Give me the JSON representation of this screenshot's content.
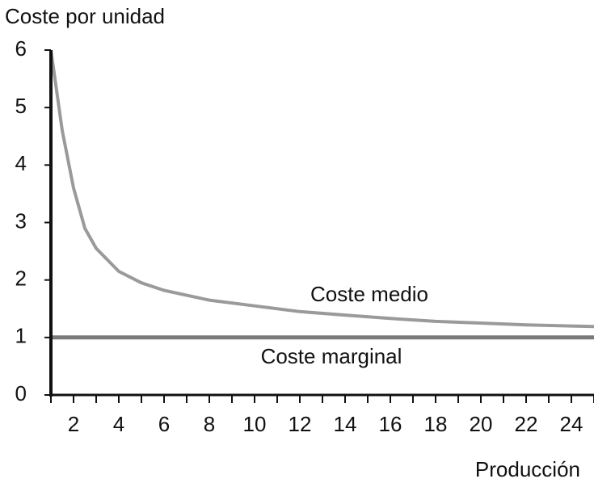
{
  "chart_data": {
    "type": "line",
    "title": "Coste por unidad",
    "x_label": "Producción",
    "xlim": [
      1,
      25
    ],
    "ylim": [
      0,
      6
    ],
    "xticks": [
      2,
      4,
      6,
      8,
      10,
      12,
      14,
      16,
      18,
      20,
      22,
      24
    ],
    "xminorticks": [
      1,
      3,
      5,
      7,
      9,
      11,
      13,
      15,
      17,
      19,
      21,
      23,
      25
    ],
    "yticks": [
      0,
      1,
      2,
      3,
      4,
      5,
      6
    ],
    "grid": false,
    "series": [
      {
        "name": "Coste medio",
        "color": "#9a9a9a",
        "x": [
          1,
          1.5,
          2,
          2.5,
          3,
          4,
          5,
          6,
          8,
          10,
          12,
          14,
          16,
          18,
          20,
          22,
          24,
          25
        ],
        "values": [
          6,
          4.6,
          3.6,
          2.9,
          2.55,
          2.15,
          1.95,
          1.82,
          1.65,
          1.55,
          1.45,
          1.39,
          1.33,
          1.28,
          1.25,
          1.22,
          1.2,
          1.19
        ]
      },
      {
        "name": "Coste marginal",
        "color": "#7a7a7a",
        "x": [
          1,
          25
        ],
        "values": [
          1,
          1
        ]
      }
    ]
  }
}
